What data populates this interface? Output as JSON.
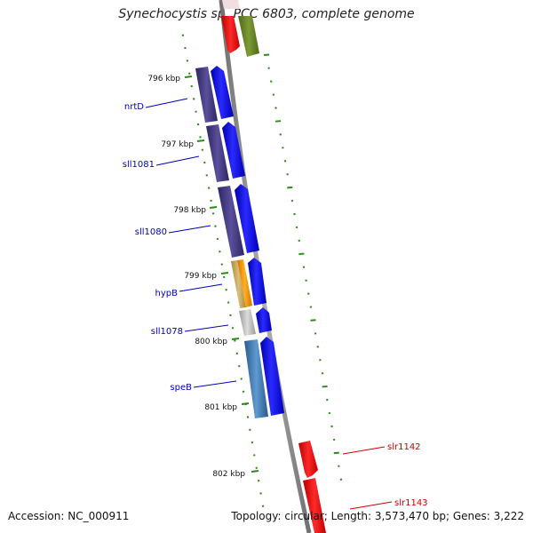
{
  "title": "Synechocystis sp. PCC 6803, complete genome",
  "footer": {
    "accession": "Accession: NC_000911",
    "summary": "Topology: circular; Length: 3,573,470 bp; Genes: 3,222"
  },
  "colors": {
    "backbone": "#888888",
    "tick": "#2a8a1a",
    "label_blue": "#0000c0",
    "label_red": "#cc0000"
  },
  "ruler_labels": [
    "796 kbp",
    "797 kbp",
    "798 kbp",
    "799 kbp",
    "800 kbp",
    "801 kbp",
    "802 kbp"
  ],
  "features": [
    {
      "name": "nrtD",
      "strand": "reverse",
      "label_color": "#0000c0"
    },
    {
      "name": "sll1081",
      "strand": "reverse",
      "label_color": "#0000c0"
    },
    {
      "name": "sll1080",
      "strand": "reverse",
      "label_color": "#0000c0"
    },
    {
      "name": "hypB",
      "strand": "reverse",
      "label_color": "#0000c0"
    },
    {
      "name": "sll1078",
      "strand": "reverse",
      "label_color": "#0000c0"
    },
    {
      "name": "speB",
      "strand": "reverse",
      "label_color": "#0000c0"
    },
    {
      "name": "slr1142",
      "strand": "forward",
      "label_color": "#cc0000"
    },
    {
      "name": "slr1143",
      "strand": "forward",
      "label_color": "#cc0000"
    }
  ]
}
